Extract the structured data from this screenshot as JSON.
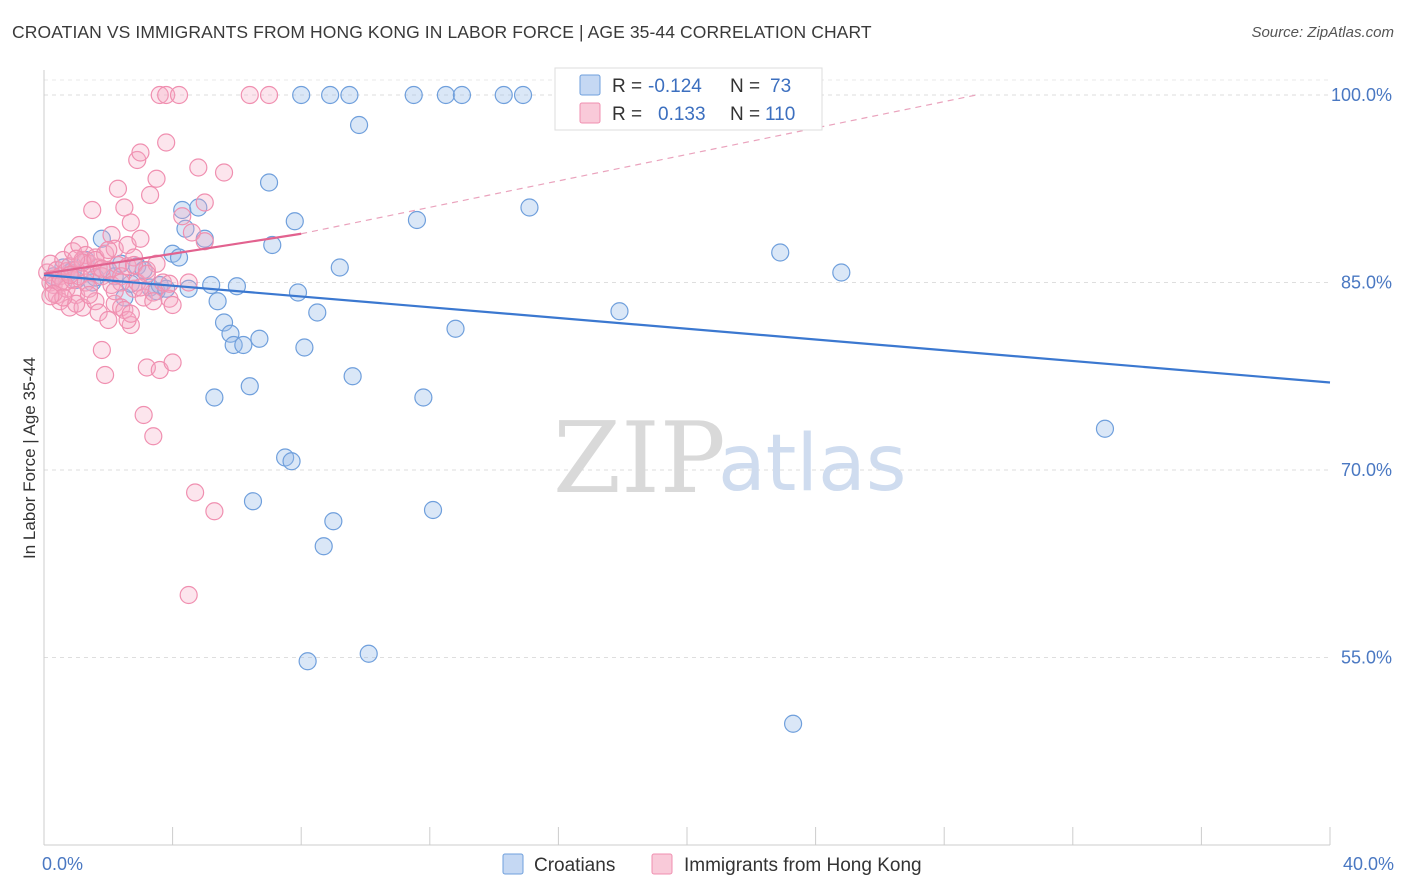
{
  "header": {
    "title": "CROATIAN VS IMMIGRANTS FROM HONG KONG IN LABOR FORCE | AGE 35-44 CORRELATION CHART",
    "source": "Source: ZipAtlas.com"
  },
  "watermark": {
    "zip": "ZIP",
    "atlas": "atlas"
  },
  "stats": {
    "r_label": "R =",
    "n_label": "N =",
    "rows": [
      {
        "r": "-0.124",
        "n": "73"
      },
      {
        "r": "0.133",
        "n": "110"
      }
    ]
  },
  "chart_data": {
    "type": "scatter",
    "ylabel": "In Labor Force | Age 35-44",
    "xlim": [
      0,
      40
    ],
    "ylim": [
      40,
      102
    ],
    "x_tick_labels": [
      {
        "value": 0,
        "label": "0.0%"
      },
      {
        "value": 40,
        "label": "40.0%"
      }
    ],
    "y_tick_labels": [
      {
        "value": 100,
        "label": "100.0%"
      },
      {
        "value": 85,
        "label": "85.0%"
      },
      {
        "value": 70,
        "label": "70.0%"
      },
      {
        "value": 55,
        "label": "55.0%"
      }
    ],
    "grid": "horizontal dashed at y ticks",
    "legend_position": "bottom-center",
    "series": [
      {
        "name": "Croatians",
        "color": "#6f9fdc",
        "trend": {
          "x": [
            0,
            40
          ],
          "y": [
            85.6,
            77.0
          ],
          "style": "solid"
        },
        "points": [
          [
            0.3,
            85.5
          ],
          [
            0.6,
            86.2
          ],
          [
            0.8,
            85.8
          ],
          [
            1.0,
            85.2
          ],
          [
            1.3,
            86.8
          ],
          [
            1.5,
            85.0
          ],
          [
            1.8,
            88.5
          ],
          [
            2.0,
            86.0
          ],
          [
            2.2,
            85.5
          ],
          [
            2.5,
            83.8
          ],
          [
            2.7,
            84.9
          ],
          [
            2.9,
            86.3
          ],
          [
            3.1,
            86.0
          ],
          [
            3.3,
            84.6
          ],
          [
            3.5,
            84.3
          ],
          [
            3.6,
            84.8
          ],
          [
            3.8,
            84.5
          ],
          [
            4.0,
            87.3
          ],
          [
            4.2,
            87.0
          ],
          [
            4.3,
            90.8
          ],
          [
            4.4,
            89.3
          ],
          [
            4.5,
            84.5
          ],
          [
            4.8,
            91.0
          ],
          [
            5.0,
            88.5
          ],
          [
            5.2,
            84.8
          ],
          [
            5.3,
            75.8
          ],
          [
            5.4,
            83.5
          ],
          [
            5.6,
            81.8
          ],
          [
            5.8,
            80.9
          ],
          [
            5.9,
            80.0
          ],
          [
            6.0,
            84.7
          ],
          [
            6.2,
            80.0
          ],
          [
            6.4,
            76.7
          ],
          [
            6.5,
            67.5
          ],
          [
            6.7,
            80.5
          ],
          [
            7.0,
            93.0
          ],
          [
            7.1,
            88.0
          ],
          [
            7.5,
            71.0
          ],
          [
            7.7,
            70.7
          ],
          [
            7.8,
            89.9
          ],
          [
            7.9,
            84.2
          ],
          [
            8.0,
            100.0
          ],
          [
            8.1,
            79.8
          ],
          [
            8.2,
            54.7
          ],
          [
            8.5,
            82.6
          ],
          [
            8.7,
            63.9
          ],
          [
            8.9,
            100.0
          ],
          [
            9.0,
            65.9
          ],
          [
            9.2,
            86.2
          ],
          [
            9.5,
            100.0
          ],
          [
            9.6,
            77.5
          ],
          [
            9.8,
            97.6
          ],
          [
            10.1,
            55.3
          ],
          [
            11.5,
            100.0
          ],
          [
            11.6,
            90.0
          ],
          [
            11.8,
            75.8
          ],
          [
            12.1,
            66.8
          ],
          [
            12.5,
            100.0
          ],
          [
            12.8,
            81.3
          ],
          [
            13.0,
            100.0
          ],
          [
            14.3,
            100.0
          ],
          [
            14.9,
            100.0
          ],
          [
            15.1,
            91.0
          ],
          [
            17.2,
            100.0
          ],
          [
            17.9,
            82.7
          ],
          [
            18.0,
            100.0
          ],
          [
            22.9,
            87.4
          ],
          [
            23.3,
            49.7
          ],
          [
            24.8,
            85.8
          ],
          [
            33.0,
            73.3
          ],
          [
            0.9,
            86.0
          ],
          [
            1.6,
            85.4
          ],
          [
            2.4,
            86.5
          ]
        ]
      },
      {
        "name": "Immigrants from Hong Kong",
        "color": "#f08fb0",
        "trend": {
          "x": [
            0,
            8
          ],
          "y": [
            85.7,
            88.9
          ],
          "style": "solid",
          "extension": {
            "x": [
              8,
              29
            ],
            "y": [
              88.9,
              100.0
            ],
            "style": "dashed"
          }
        },
        "points": [
          [
            0.1,
            85.8
          ],
          [
            0.2,
            85.0
          ],
          [
            0.2,
            86.5
          ],
          [
            0.3,
            84.8
          ],
          [
            0.3,
            85.3
          ],
          [
            0.4,
            86.0
          ],
          [
            0.4,
            84.0
          ],
          [
            0.5,
            85.5
          ],
          [
            0.5,
            83.5
          ],
          [
            0.6,
            85.0
          ],
          [
            0.6,
            86.8
          ],
          [
            0.7,
            84.5
          ],
          [
            0.7,
            85.9
          ],
          [
            0.8,
            83.0
          ],
          [
            0.8,
            86.3
          ],
          [
            0.9,
            85.2
          ],
          [
            0.9,
            87.5
          ],
          [
            1.0,
            84.0
          ],
          [
            1.0,
            86.0
          ],
          [
            1.1,
            88.0
          ],
          [
            1.1,
            85.5
          ],
          [
            1.2,
            83.0
          ],
          [
            1.2,
            86.8
          ],
          [
            1.3,
            85.0
          ],
          [
            1.3,
            87.2
          ],
          [
            1.4,
            84.5
          ],
          [
            1.4,
            86.5
          ],
          [
            1.5,
            85.8
          ],
          [
            1.5,
            90.8
          ],
          [
            1.6,
            83.5
          ],
          [
            1.6,
            87.0
          ],
          [
            1.7,
            82.6
          ],
          [
            1.7,
            86.2
          ],
          [
            1.8,
            79.6
          ],
          [
            1.8,
            85.5
          ],
          [
            1.9,
            77.6
          ],
          [
            1.9,
            87.3
          ],
          [
            2.0,
            82.0
          ],
          [
            2.0,
            86.0
          ],
          [
            2.1,
            88.8
          ],
          [
            2.1,
            84.8
          ],
          [
            2.2,
            83.3
          ],
          [
            2.2,
            87.7
          ],
          [
            2.3,
            92.5
          ],
          [
            2.3,
            86.4
          ],
          [
            2.4,
            83.0
          ],
          [
            2.4,
            85.5
          ],
          [
            2.5,
            91.0
          ],
          [
            2.5,
            82.8
          ],
          [
            2.6,
            88.0
          ],
          [
            2.6,
            86.3
          ],
          [
            2.7,
            81.6
          ],
          [
            2.7,
            89.8
          ],
          [
            2.8,
            84.5
          ],
          [
            2.8,
            87.0
          ],
          [
            2.9,
            94.8
          ],
          [
            2.9,
            85.0
          ],
          [
            3.0,
            95.4
          ],
          [
            3.0,
            88.5
          ],
          [
            3.1,
            74.4
          ],
          [
            3.1,
            83.8
          ],
          [
            3.2,
            78.2
          ],
          [
            3.2,
            86.0
          ],
          [
            3.3,
            92.0
          ],
          [
            3.4,
            72.7
          ],
          [
            3.4,
            84.2
          ],
          [
            3.5,
            93.3
          ],
          [
            3.5,
            86.5
          ],
          [
            3.6,
            100.0
          ],
          [
            3.6,
            78.0
          ],
          [
            3.7,
            85.0
          ],
          [
            3.8,
            100.0
          ],
          [
            3.8,
            96.2
          ],
          [
            3.9,
            83.7
          ],
          [
            4.0,
            78.6
          ],
          [
            4.0,
            83.2
          ],
          [
            4.2,
            100.0
          ],
          [
            4.3,
            90.3
          ],
          [
            4.5,
            85.0
          ],
          [
            4.6,
            89.0
          ],
          [
            4.7,
            68.2
          ],
          [
            4.8,
            94.2
          ],
          [
            5.0,
            91.4
          ],
          [
            5.0,
            88.3
          ],
          [
            5.3,
            66.7
          ],
          [
            5.6,
            93.8
          ],
          [
            6.4,
            100.0
          ],
          [
            7.0,
            100.0
          ],
          [
            4.5,
            60.0
          ],
          [
            1.0,
            83.3
          ],
          [
            0.5,
            85.0
          ],
          [
            0.3,
            84.1
          ],
          [
            0.8,
            85.6
          ],
          [
            1.2,
            86.6
          ],
          [
            1.6,
            86.8
          ],
          [
            2.0,
            87.6
          ],
          [
            2.4,
            85.0
          ],
          [
            2.8,
            86.4
          ],
          [
            3.2,
            85.7
          ],
          [
            0.6,
            83.8
          ],
          [
            1.4,
            84.0
          ],
          [
            1.8,
            86.1
          ],
          [
            2.2,
            84.3
          ],
          [
            2.6,
            82.0
          ],
          [
            3.0,
            84.6
          ],
          [
            3.4,
            83.5
          ],
          [
            3.9,
            84.9
          ],
          [
            0.2,
            83.9
          ],
          [
            1.0,
            86.9
          ],
          [
            2.7,
            82.5
          ]
        ]
      }
    ]
  }
}
